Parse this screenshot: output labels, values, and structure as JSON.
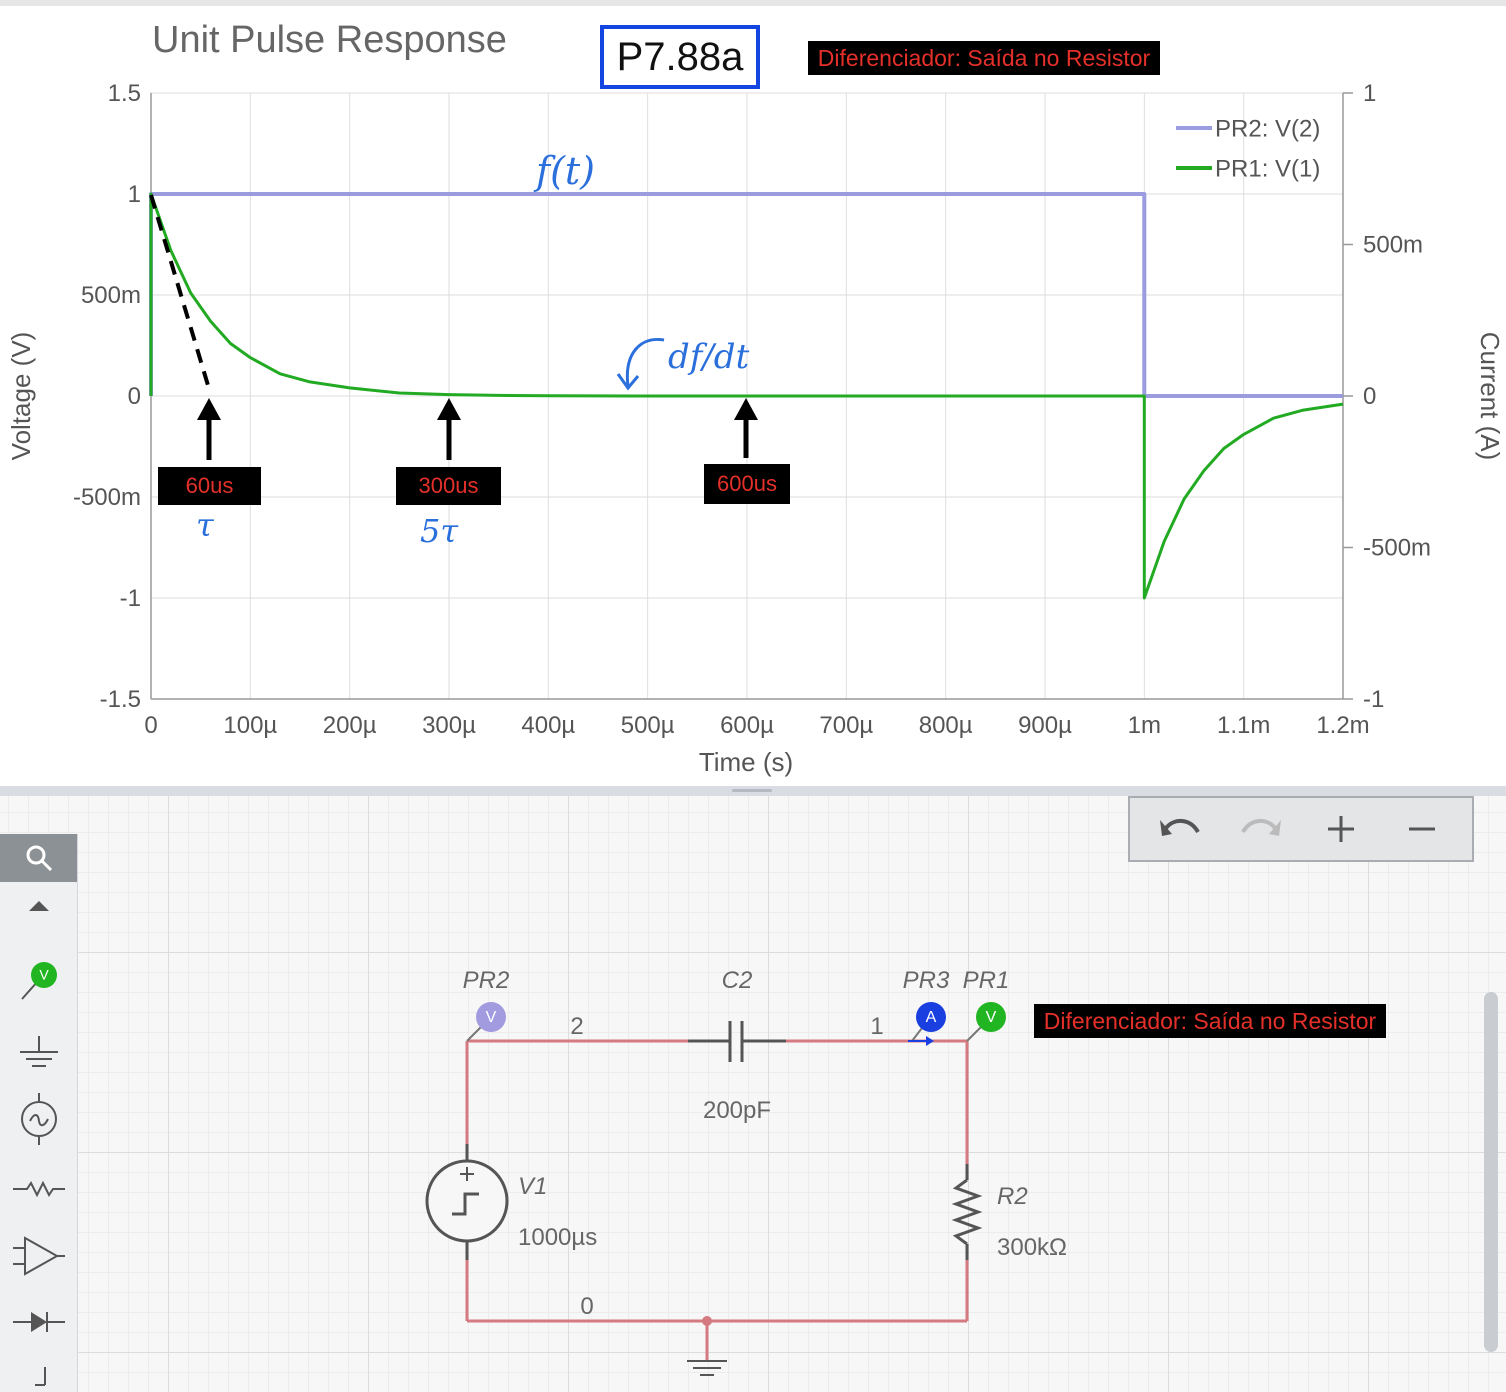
{
  "chart": {
    "title": "Unit Pulse Response",
    "badge": "P7.88a",
    "subtitle_label": "Diferenciador: Saída no Resistor",
    "left_axis_label": "Voltage (V)",
    "right_axis_label": "Current (A)",
    "x_axis_label": "Time (s)",
    "annotations": {
      "marker_60": "60us",
      "marker_300": "300us",
      "marker_600": "600us",
      "ink_ft": "f(t)",
      "ink_dfdt": "df/dt",
      "ink_tau": "τ",
      "ink_5tau": "5τ"
    }
  },
  "chart_data": {
    "type": "line",
    "title": "Unit Pulse Response",
    "xlabel": "Time (s)",
    "ylabel": "Voltage (V)",
    "y2label": "Current (A)",
    "xlim": [
      0,
      0.0012
    ],
    "ylim": [
      -1.5,
      1.5
    ],
    "y2lim": [
      -1,
      1
    ],
    "x_ticks": [
      0,
      0.0001,
      0.0002,
      0.0003,
      0.0004,
      0.0005,
      0.0006,
      0.0007,
      0.0008,
      0.0009,
      0.001,
      0.0011,
      0.0012
    ],
    "x_tick_labels": [
      "0",
      "100µ",
      "200µ",
      "300µ",
      "400µ",
      "500µ",
      "600µ",
      "700µ",
      "800µ",
      "900µ",
      "1m",
      "1.1m",
      "1.2m"
    ],
    "y_ticks": [
      1.5,
      1,
      0.5,
      0,
      -0.5,
      -1,
      -1.5
    ],
    "y_tick_labels": [
      "1.5",
      "1",
      "500m",
      "0",
      "-500m",
      "-1",
      "-1.5"
    ],
    "y2_ticks": [
      1,
      0.5,
      0,
      -0.5,
      -1
    ],
    "y2_tick_labels": [
      "1",
      "500m",
      "0",
      "-500m",
      "-1"
    ],
    "grid": true,
    "legend_position": "top-right",
    "series": [
      {
        "name": "PR2: V(2)",
        "color": "#9b9be0",
        "x": [
          0,
          0,
          0.001,
          0.001,
          0.0012
        ],
        "y": [
          0,
          1,
          1,
          0,
          0
        ]
      },
      {
        "name": "PR1: V(1)",
        "color": "#22aa22",
        "x": [
          0,
          0,
          2e-05,
          4e-05,
          6e-05,
          8e-05,
          0.0001,
          0.00013,
          0.00016,
          0.0002,
          0.00025,
          0.0003,
          0.00035,
          0.0004,
          0.0005,
          0.0006,
          0.0008,
          0.001,
          0.001,
          0.00102,
          0.00104,
          0.00106,
          0.00108,
          0.0011,
          0.00113,
          0.00116,
          0.0012
        ],
        "y": [
          0,
          1,
          0.72,
          0.51,
          0.37,
          0.26,
          0.19,
          0.11,
          0.07,
          0.04,
          0.015,
          0.007,
          0.003,
          0.001,
          0,
          0,
          0,
          0,
          -1,
          -0.72,
          -0.51,
          -0.37,
          -0.26,
          -0.19,
          -0.11,
          -0.07,
          -0.04
        ]
      }
    ]
  },
  "schematic": {
    "probes": {
      "pr2": "PR2",
      "pr3": "PR3",
      "pr1": "PR1",
      "pr2_letter": "V",
      "pr3_letter": "A",
      "pr1_letter": "V"
    },
    "nodes": {
      "n2": "2",
      "n1": "1",
      "n0": "0"
    },
    "capacitor": {
      "name": "C2",
      "value": "200pF"
    },
    "source": {
      "name": "V1",
      "value": "1000µs"
    },
    "resistor": {
      "name": "R2",
      "value": "300kΩ"
    },
    "note_label": "Diferenciador: Saída no Resistor",
    "colors": {
      "wire": "#d67a82",
      "probe_v_purple": "#a29be0",
      "probe_a_blue": "#1a3fe0",
      "probe_v_green": "#21b521"
    }
  },
  "toolbar": {
    "left_tool_icons": [
      "search-icon",
      "scroll-up-icon",
      "voltage-probe-icon",
      "ground-icon",
      "ac-source-icon",
      "resistor-icon",
      "op-amp-icon",
      "diode-icon",
      "switch-icon"
    ],
    "top_right_icons": [
      "undo-icon",
      "redo-icon",
      "zoom-in-icon",
      "zoom-out-icon"
    ]
  }
}
